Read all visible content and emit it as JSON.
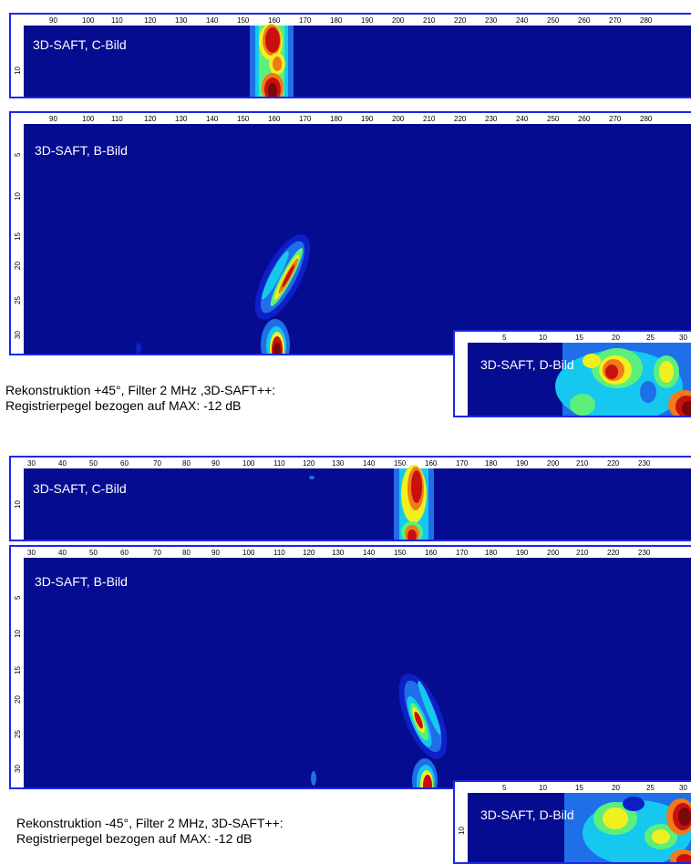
{
  "colors": {
    "background": "#050c90",
    "frame": "#1d27e8",
    "palette": [
      "#0d20c8",
      "#1f6fe8",
      "#16c8f0",
      "#5cf07a",
      "#f0f020",
      "#f07a18",
      "#c81010",
      "#7a0808"
    ]
  },
  "sections": [
    {
      "caption": {
        "line1": "Rekonstruktion +45°, Filter 2 MHz ,3D-SAFT++:",
        "line2": "Registrierpegel bezogen auf MAX: -12 dB"
      },
      "c_bild": {
        "title": "3D-SAFT, C-Bild",
        "x_ticks": [
          "90",
          "100",
          "110",
          "120",
          "130",
          "140",
          "150",
          "160",
          "170",
          "180",
          "190",
          "200",
          "210",
          "220",
          "230",
          "240",
          "250",
          "260",
          "270",
          "280"
        ],
        "y_ticks": [
          "10"
        ]
      },
      "b_bild": {
        "title": "3D-SAFT, B-Bild",
        "x_ticks": [
          "90",
          "100",
          "110",
          "120",
          "130",
          "140",
          "150",
          "160",
          "170",
          "180",
          "190",
          "200",
          "210",
          "220",
          "230",
          "240",
          "250",
          "260",
          "270",
          "280"
        ],
        "y_ticks": [
          "5",
          "10",
          "15",
          "20",
          "25",
          "30"
        ]
      },
      "d_bild": {
        "title": "3D-SAFT, D-Bild",
        "x_ticks": [
          "5",
          "10",
          "15",
          "20",
          "25",
          "30"
        ],
        "y_ticks": []
      }
    },
    {
      "caption": {
        "line1": "Rekonstruktion -45°, Filter 2 MHz, 3D-SAFT++:",
        "line2": "Registrierpegel bezogen auf MAX: -12 dB"
      },
      "c_bild": {
        "title": "3D-SAFT, C-Bild",
        "x_ticks": [
          "30",
          "40",
          "50",
          "60",
          "70",
          "80",
          "90",
          "100",
          "110",
          "120",
          "130",
          "140",
          "150",
          "160",
          "170",
          "180",
          "190",
          "200",
          "210",
          "220",
          "230"
        ],
        "y_ticks": [
          "10"
        ]
      },
      "b_bild": {
        "title": "3D-SAFT, B-Bild",
        "x_ticks": [
          "30",
          "40",
          "50",
          "60",
          "70",
          "80",
          "90",
          "100",
          "110",
          "120",
          "130",
          "140",
          "150",
          "160",
          "170",
          "180",
          "190",
          "200",
          "210",
          "220",
          "230"
        ],
        "y_ticks": [
          "5",
          "10",
          "15",
          "20",
          "25",
          "30"
        ]
      },
      "d_bild": {
        "title": "3D-SAFT, D-Bild",
        "x_ticks": [
          "5",
          "10",
          "15",
          "20",
          "25",
          "30"
        ],
        "y_ticks": [
          "10"
        ]
      }
    }
  ]
}
